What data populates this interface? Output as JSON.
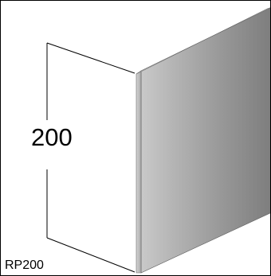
{
  "diagram": {
    "dimension_label": "200",
    "product_code": "RP200"
  },
  "colors": {
    "frame": "#000000",
    "panel_edge": "#b3b3b3",
    "panel_face_light": "#c9c9c9",
    "panel_face_dark": "#7f7f7f",
    "dimension_line": "#000000"
  }
}
